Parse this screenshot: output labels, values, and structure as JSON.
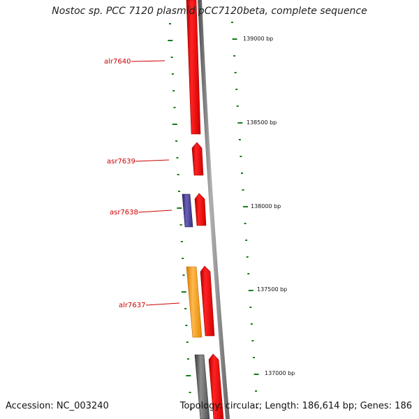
{
  "title": "Nostoc sp. PCC 7120 plasmid pCC7120beta, complete sequence",
  "accession_label": "Accession: NC_003240",
  "summary_label": "Topology: circular; Length: 186,614 bp; Genes: 186",
  "bp_markers": [
    "139000 bp",
    "138500 bp",
    "138000 bp",
    "137500 bp",
    "137000 bp"
  ],
  "genes": [
    {
      "name": "alr7640"
    },
    {
      "name": "asr7639"
    },
    {
      "name": "asr7638"
    },
    {
      "name": "alr7637"
    }
  ],
  "colors": {
    "forward_gene": "#ee1111",
    "reverse_gene_blue": "#4a3f8f",
    "reverse_gene_orange": "#ff9900",
    "reverse_gene_gray": "#6a6a6a",
    "backbone": "#8a8a8a",
    "tick": "#1a7a1a",
    "label": "#cc0000",
    "bp_label": "#111111"
  }
}
